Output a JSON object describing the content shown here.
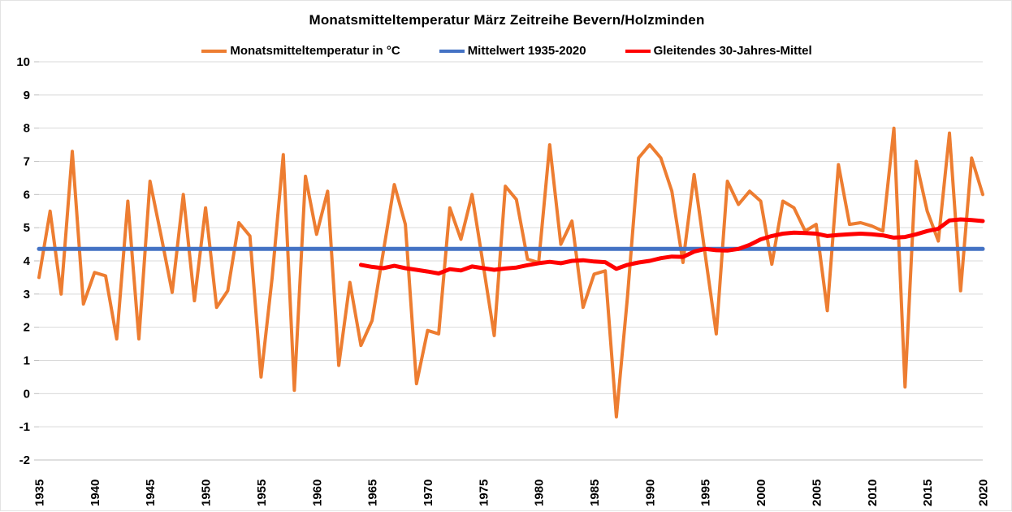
{
  "title": "Monatsmitteltemperatur März Zeitreihe Bevern/Holzminden",
  "legend": {
    "items": [
      {
        "label": "Monatsmitteltemperatur in °C",
        "color": "#ED7D31"
      },
      {
        "label": "Mittelwert 1935-2020",
        "color": "#4472C4"
      },
      {
        "label": "Gleitendes 30-Jahres-Mittel",
        "color": "#FF0000"
      }
    ]
  },
  "colors": {
    "gridline": "#D9D9D9",
    "axis_line": "#BFBFBF",
    "tick_text": "#000000",
    "background": "#FFFFFF"
  },
  "chart_data": {
    "type": "line",
    "title": "Monatsmitteltemperatur März Zeitreihe Bevern/Holzminden",
    "xlabel": "",
    "ylabel": "",
    "x_range": [
      1935,
      2020
    ],
    "ylim": [
      -2,
      10
    ],
    "y_tick_step": 1,
    "grid": "horizontal",
    "legend_position": "top-center",
    "y_ticks": [
      10,
      9,
      8,
      7,
      6,
      5,
      4,
      3,
      2,
      1,
      0,
      -1,
      -2
    ],
    "x_ticks": [
      1935,
      1940,
      1945,
      1950,
      1955,
      1960,
      1965,
      1970,
      1975,
      1980,
      1985,
      1990,
      1995,
      2000,
      2005,
      2010,
      2015,
      2020
    ],
    "series": [
      {
        "name": "Monatsmitteltemperatur in °C",
        "color": "#ED7D31",
        "width": 4,
        "start_year": 1935,
        "values": [
          3.5,
          5.5,
          3.0,
          7.3,
          2.7,
          3.65,
          3.55,
          1.65,
          5.8,
          1.65,
          6.4,
          4.75,
          3.05,
          6.0,
          2.8,
          5.6,
          2.6,
          3.1,
          5.15,
          4.75,
          0.5,
          3.5,
          7.2,
          0.1,
          6.55,
          4.8,
          6.1,
          0.85,
          3.35,
          1.45,
          2.2,
          4.25,
          6.3,
          5.1,
          0.3,
          1.9,
          1.8,
          5.6,
          4.65,
          6.0,
          3.9,
          1.75,
          6.25,
          5.85,
          4.05,
          3.95,
          7.5,
          4.5,
          5.2,
          2.6,
          3.6,
          3.7,
          -0.7,
          2.9,
          7.1,
          7.5,
          7.1,
          6.1,
          3.95,
          6.6,
          4.2,
          1.8,
          6.4,
          5.7,
          6.1,
          5.8,
          3.9,
          5.8,
          5.6,
          4.9,
          5.1,
          2.5,
          6.9,
          5.1,
          5.15,
          5.05,
          4.9,
          8.0,
          0.2,
          7.0,
          5.5,
          4.6,
          7.85,
          3.1,
          7.1,
          6.0
        ]
      },
      {
        "name": "Mittelwert 1935-2020",
        "color": "#4472C4",
        "width": 5,
        "start_year": 1935,
        "end_year": 2020,
        "constant": 4.36
      },
      {
        "name": "Gleitendes 30-Jahres-Mittel",
        "color": "#FF0000",
        "width": 5,
        "start_year": 1964,
        "values": [
          3.88,
          3.82,
          3.78,
          3.85,
          3.78,
          3.73,
          3.68,
          3.62,
          3.75,
          3.71,
          3.83,
          3.78,
          3.73,
          3.77,
          3.8,
          3.87,
          3.93,
          3.97,
          3.93,
          4.0,
          4.02,
          3.98,
          3.96,
          3.76,
          3.88,
          3.95,
          4.0,
          4.08,
          4.13,
          4.12,
          4.28,
          4.36,
          4.32,
          4.31,
          4.36,
          4.48,
          4.65,
          4.75,
          4.82,
          4.85,
          4.84,
          4.82,
          4.75,
          4.78,
          4.8,
          4.82,
          4.8,
          4.77,
          4.7,
          4.72,
          4.8,
          4.9,
          4.97,
          5.22,
          5.25,
          5.23,
          5.2
        ]
      }
    ]
  }
}
